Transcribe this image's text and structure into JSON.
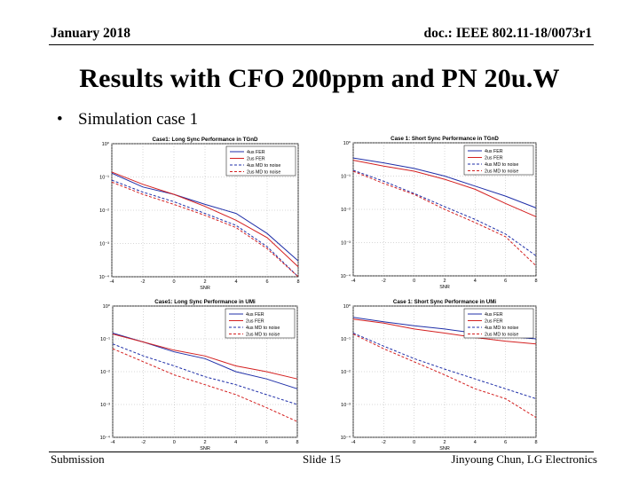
{
  "header": {
    "date": "January 2018",
    "doc_id": "doc.: IEEE 802.11-18/0073r1"
  },
  "title": "Results with CFO 200ppm and PN 20u.W",
  "bullet": "Simulation case 1",
  "footer": {
    "left": "Submission",
    "center": "Slide 15",
    "right": "Jinyoung Chun, LG Electronics"
  },
  "colors": {
    "blue": "#1f2fa8",
    "red": "#d42020",
    "grid": "#b0b0b0"
  },
  "chart_data": [
    {
      "type": "line",
      "title": "Case1: Long Sync Performance in TGnD",
      "xlabel": "SNR",
      "x": [
        -4,
        -2,
        0,
        2,
        4,
        6,
        8
      ],
      "xlim": [
        -4,
        8
      ],
      "ylim": [
        0.0001,
        1
      ],
      "yscale": "log",
      "ytick_labels": [
        "10⁰",
        "10⁻¹",
        "10⁻²",
        "10⁻³",
        "10⁻⁴"
      ],
      "grid": true,
      "legend_position": "top-right",
      "series": [
        {
          "name": "4us FER",
          "color": "blue",
          "dash": "solid",
          "values": [
            0.13,
            0.05,
            0.03,
            0.015,
            0.008,
            0.002,
            0.0003
          ]
        },
        {
          "name": "2us FER",
          "color": "red",
          "dash": "solid",
          "values": [
            0.14,
            0.06,
            0.03,
            0.013,
            0.005,
            0.0015,
            0.0002
          ]
        },
        {
          "name": "4us MD to noise",
          "color": "blue",
          "dash": "dashed",
          "values": [
            0.08,
            0.035,
            0.018,
            0.008,
            0.0035,
            0.0008,
            0.0001
          ]
        },
        {
          "name": "2us MD to noise",
          "color": "red",
          "dash": "dashed",
          "values": [
            0.07,
            0.03,
            0.015,
            0.007,
            0.003,
            0.0007,
            0.0001
          ]
        }
      ]
    },
    {
      "type": "line",
      "title": "Case 1: Short Sync Performance in TGnD",
      "xlabel": "SNR",
      "x": [
        -4,
        -2,
        0,
        2,
        4,
        6,
        8
      ],
      "xlim": [
        -4,
        8
      ],
      "ylim": [
        0.0001,
        1
      ],
      "yscale": "log",
      "ytick_labels": [
        "10⁰",
        "10⁻¹",
        "10⁻²",
        "10⁻³",
        "10⁻⁴"
      ],
      "grid": true,
      "legend_position": "top-right",
      "series": [
        {
          "name": "4us FER",
          "color": "blue",
          "dash": "solid",
          "values": [
            0.35,
            0.25,
            0.17,
            0.1,
            0.05,
            0.025,
            0.011
          ]
        },
        {
          "name": "2us FER",
          "color": "red",
          "dash": "solid",
          "values": [
            0.3,
            0.2,
            0.14,
            0.08,
            0.04,
            0.015,
            0.006
          ]
        },
        {
          "name": "4us MD to noise",
          "color": "blue",
          "dash": "dashed",
          "values": [
            0.15,
            0.07,
            0.03,
            0.012,
            0.005,
            0.0018,
            0.0004
          ]
        },
        {
          "name": "2us MD to noise",
          "color": "red",
          "dash": "dashed",
          "values": [
            0.14,
            0.06,
            0.028,
            0.01,
            0.004,
            0.0015,
            0.0002
          ]
        }
      ]
    },
    {
      "type": "line",
      "title": "Case1: Long Sync Performance in UMi",
      "xlabel": "SNR",
      "x": [
        -4,
        -2,
        0,
        2,
        4,
        6,
        8
      ],
      "xlim": [
        -4,
        8
      ],
      "ylim": [
        0.0001,
        1
      ],
      "yscale": "log",
      "ytick_labels": [
        "10⁰",
        "10⁻¹",
        "10⁻²",
        "10⁻³",
        "10⁻⁴"
      ],
      "grid": true,
      "legend_position": "top-right",
      "series": [
        {
          "name": "4us FER",
          "color": "blue",
          "dash": "solid",
          "values": [
            0.15,
            0.08,
            0.04,
            0.025,
            0.01,
            0.006,
            0.003
          ]
        },
        {
          "name": "2us FER",
          "color": "red",
          "dash": "solid",
          "values": [
            0.14,
            0.08,
            0.045,
            0.03,
            0.015,
            0.01,
            0.006
          ]
        },
        {
          "name": "4us MD to noise",
          "color": "blue",
          "dash": "dashed",
          "values": [
            0.07,
            0.03,
            0.015,
            0.007,
            0.004,
            0.002,
            0.001
          ]
        },
        {
          "name": "2us MD to noise",
          "color": "red",
          "dash": "dashed",
          "values": [
            0.05,
            0.02,
            0.008,
            0.004,
            0.002,
            0.0008,
            0.0003
          ]
        }
      ]
    },
    {
      "type": "line",
      "title": "Case 1: Short Sync Performance in UMi",
      "xlabel": "SNR",
      "x": [
        -4,
        -2,
        0,
        2,
        4,
        6,
        8
      ],
      "xlim": [
        -4,
        8
      ],
      "ylim": [
        0.0001,
        1
      ],
      "yscale": "log",
      "ytick_labels": [
        "10⁰",
        "10⁻¹",
        "10⁻²",
        "10⁻³",
        "10⁻⁴"
      ],
      "grid": true,
      "legend_position": "top-right",
      "series": [
        {
          "name": "4us FER",
          "color": "blue",
          "dash": "solid",
          "values": [
            0.45,
            0.33,
            0.25,
            0.2,
            0.15,
            0.12,
            0.1
          ]
        },
        {
          "name": "2us FER",
          "color": "red",
          "dash": "solid",
          "values": [
            0.4,
            0.3,
            0.2,
            0.15,
            0.11,
            0.085,
            0.07
          ]
        },
        {
          "name": "4us MD to noise",
          "color": "blue",
          "dash": "dashed",
          "values": [
            0.15,
            0.06,
            0.025,
            0.012,
            0.006,
            0.003,
            0.0015
          ]
        },
        {
          "name": "2us MD to noise",
          "color": "red",
          "dash": "dashed",
          "values": [
            0.14,
            0.05,
            0.02,
            0.008,
            0.003,
            0.0015,
            0.0004
          ]
        }
      ]
    }
  ]
}
